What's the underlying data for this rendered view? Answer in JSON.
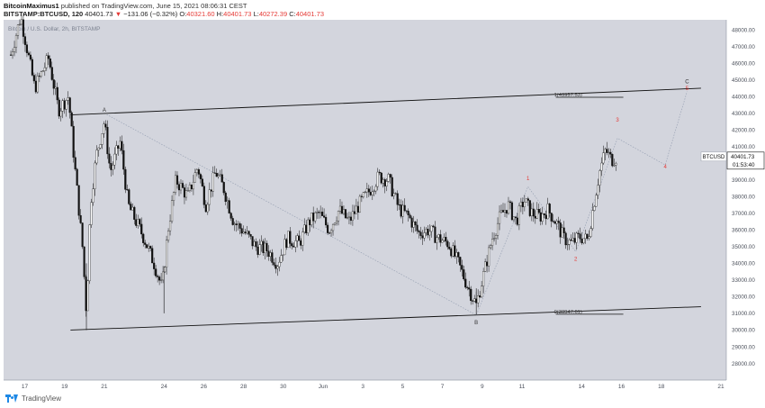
{
  "header": {
    "author": "BitcoinMaximus1",
    "published_text": "published on TradingView.com, June 15, 2021 08:06:31 CEST",
    "symbol": "BITSTAMP:BTCUSD, 120",
    "last": "40401.73",
    "change": "−131.06 (−0.32%)",
    "o_label": "O:",
    "o_value": "40321.60",
    "h_label": "H:",
    "h_value": "40401.73",
    "l_label": "L:",
    "l_value": "40272.39",
    "c_label": "C:",
    "c_value": "40401.73"
  },
  "legend_ghost": "Bitcoin / U.S. Dollar, 2h, BITSTAMP",
  "footer": {
    "brand": "TradingView"
  },
  "chart_data": {
    "type": "candlestick",
    "currency": "USD",
    "y_ticks": [
      28000,
      29000,
      30000,
      31000,
      32000,
      33000,
      34000,
      35000,
      36000,
      37000,
      38000,
      39000,
      40000,
      41000,
      42000,
      43000,
      44000,
      45000,
      46000,
      47000,
      48000
    ],
    "x_ticks": [
      {
        "label": "17",
        "day": 17
      },
      {
        "label": "19",
        "day": 19
      },
      {
        "label": "21",
        "day": 21
      },
      {
        "label": "24",
        "day": 24
      },
      {
        "label": "26",
        "day": 26
      },
      {
        "label": "28",
        "day": 28
      },
      {
        "label": "30",
        "day": 30
      },
      {
        "label": "Jun",
        "day": 32
      },
      {
        "label": "3",
        "day": 34
      },
      {
        "label": "5",
        "day": 36
      },
      {
        "label": "7",
        "day": 38
      },
      {
        "label": "9",
        "day": 40
      },
      {
        "label": "11",
        "day": 42
      },
      {
        "label": "14",
        "day": 45
      },
      {
        "label": "16",
        "day": 47
      },
      {
        "label": "18",
        "day": 49
      },
      {
        "label": "21",
        "day": 52
      }
    ],
    "price_label": {
      "symbol": "BTCUSD",
      "price": "40401.73",
      "countdown": "01:53:40",
      "value": 40401.73
    },
    "fib_levels": [
      {
        "label": "1(43957.53)",
        "value": 43957.53
      },
      {
        "label": "0(30947.61)",
        "value": 30947.61
      }
    ],
    "channel_lines": [
      {
        "from": {
          "day": 19.3,
          "value": 42900
        },
        "to": {
          "day": 51,
          "value": 44500
        }
      },
      {
        "from": {
          "day": 19.3,
          "value": 30000
        },
        "to": {
          "day": 51,
          "value": 31400
        }
      }
    ],
    "wave_labels": [
      {
        "label": "A",
        "day": 21,
        "value": 43100,
        "color": "#333333"
      },
      {
        "label": "B",
        "day": 39.7,
        "value": 30350,
        "color": "#333333"
      },
      {
        "label": "C",
        "day": 50.3,
        "value": 44800,
        "color": "#333333"
      },
      {
        "label": "1",
        "day": 42.3,
        "value": 39000,
        "color": "#e53935"
      },
      {
        "label": "2",
        "day": 44.7,
        "value": 34150,
        "color": "#e53935"
      },
      {
        "label": "3",
        "day": 46.8,
        "value": 42500,
        "color": "#e53935"
      },
      {
        "label": "4",
        "day": 49.2,
        "value": 39700,
        "color": "#e53935"
      },
      {
        "label": "5",
        "day": 50.3,
        "value": 44400,
        "color": "#e53935"
      }
    ],
    "dotted_path": [
      {
        "day": 21,
        "value": 43000
      },
      {
        "day": 39.7,
        "value": 30900
      },
      {
        "day": 42.3,
        "value": 38600
      },
      {
        "day": 44.7,
        "value": 34700
      },
      {
        "day": 46.8,
        "value": 41500
      },
      {
        "day": 49.2,
        "value": 39900
      },
      {
        "day": 50.3,
        "value": 44300
      }
    ],
    "price_path": [
      {
        "day": 16.3,
        "value": 46500
      },
      {
        "day": 16.8,
        "value": 48800
      },
      {
        "day": 17.5,
        "value": 44500
      },
      {
        "day": 18.2,
        "value": 46300
      },
      {
        "day": 18.7,
        "value": 43200
      },
      {
        "day": 19.2,
        "value": 44000
      },
      {
        "day": 19.5,
        "value": 40000
      },
      {
        "day": 19.9,
        "value": 35000
      },
      {
        "day": 20.1,
        "value": 31000
      },
      {
        "day": 20.3,
        "value": 37500
      },
      {
        "day": 20.6,
        "value": 40500
      },
      {
        "day": 21.0,
        "value": 42500
      },
      {
        "day": 21.3,
        "value": 39500
      },
      {
        "day": 21.8,
        "value": 41300
      },
      {
        "day": 22.2,
        "value": 37500
      },
      {
        "day": 22.6,
        "value": 36500
      },
      {
        "day": 23.0,
        "value": 35500
      },
      {
        "day": 23.5,
        "value": 34000
      },
      {
        "day": 23.9,
        "value": 32500
      },
      {
        "day": 24.2,
        "value": 36000
      },
      {
        "day": 24.6,
        "value": 39000
      },
      {
        "day": 25.2,
        "value": 38000
      },
      {
        "day": 25.7,
        "value": 39800
      },
      {
        "day": 26.1,
        "value": 37500
      },
      {
        "day": 26.6,
        "value": 39500
      },
      {
        "day": 27.0,
        "value": 38500
      },
      {
        "day": 27.5,
        "value": 36500
      },
      {
        "day": 28.1,
        "value": 35800
      },
      {
        "day": 28.6,
        "value": 35000
      },
      {
        "day": 29.2,
        "value": 34800
      },
      {
        "day": 29.7,
        "value": 34000
      },
      {
        "day": 30.2,
        "value": 35500
      },
      {
        "day": 30.8,
        "value": 35200
      },
      {
        "day": 31.3,
        "value": 36500
      },
      {
        "day": 31.8,
        "value": 37000
      },
      {
        "day": 32.3,
        "value": 36000
      },
      {
        "day": 32.8,
        "value": 37200
      },
      {
        "day": 33.3,
        "value": 36500
      },
      {
        "day": 33.8,
        "value": 37500
      },
      {
        "day": 34.3,
        "value": 38300
      },
      {
        "day": 34.8,
        "value": 39200
      },
      {
        "day": 35.3,
        "value": 39000
      },
      {
        "day": 35.8,
        "value": 37300
      },
      {
        "day": 36.3,
        "value": 36800
      },
      {
        "day": 36.8,
        "value": 35800
      },
      {
        "day": 37.3,
        "value": 36000
      },
      {
        "day": 37.8,
        "value": 35500
      },
      {
        "day": 38.3,
        "value": 35200
      },
      {
        "day": 38.8,
        "value": 34000
      },
      {
        "day": 39.2,
        "value": 32800
      },
      {
        "day": 39.7,
        "value": 31500
      },
      {
        "day": 40.1,
        "value": 33500
      },
      {
        "day": 40.5,
        "value": 35500
      },
      {
        "day": 40.9,
        "value": 36800
      },
      {
        "day": 41.3,
        "value": 37500
      },
      {
        "day": 41.7,
        "value": 36500
      },
      {
        "day": 42.1,
        "value": 37800
      },
      {
        "day": 42.5,
        "value": 37000
      },
      {
        "day": 42.9,
        "value": 36800
      },
      {
        "day": 43.3,
        "value": 37200
      },
      {
        "day": 43.7,
        "value": 36500
      },
      {
        "day": 44.1,
        "value": 35500
      },
      {
        "day": 44.5,
        "value": 35200
      },
      {
        "day": 44.9,
        "value": 35600
      },
      {
        "day": 45.3,
        "value": 35400
      },
      {
        "day": 45.6,
        "value": 37500
      },
      {
        "day": 45.9,
        "value": 39500
      },
      {
        "day": 46.2,
        "value": 40800
      },
      {
        "day": 46.5,
        "value": 40200
      },
      {
        "day": 46.8,
        "value": 40400
      }
    ]
  }
}
